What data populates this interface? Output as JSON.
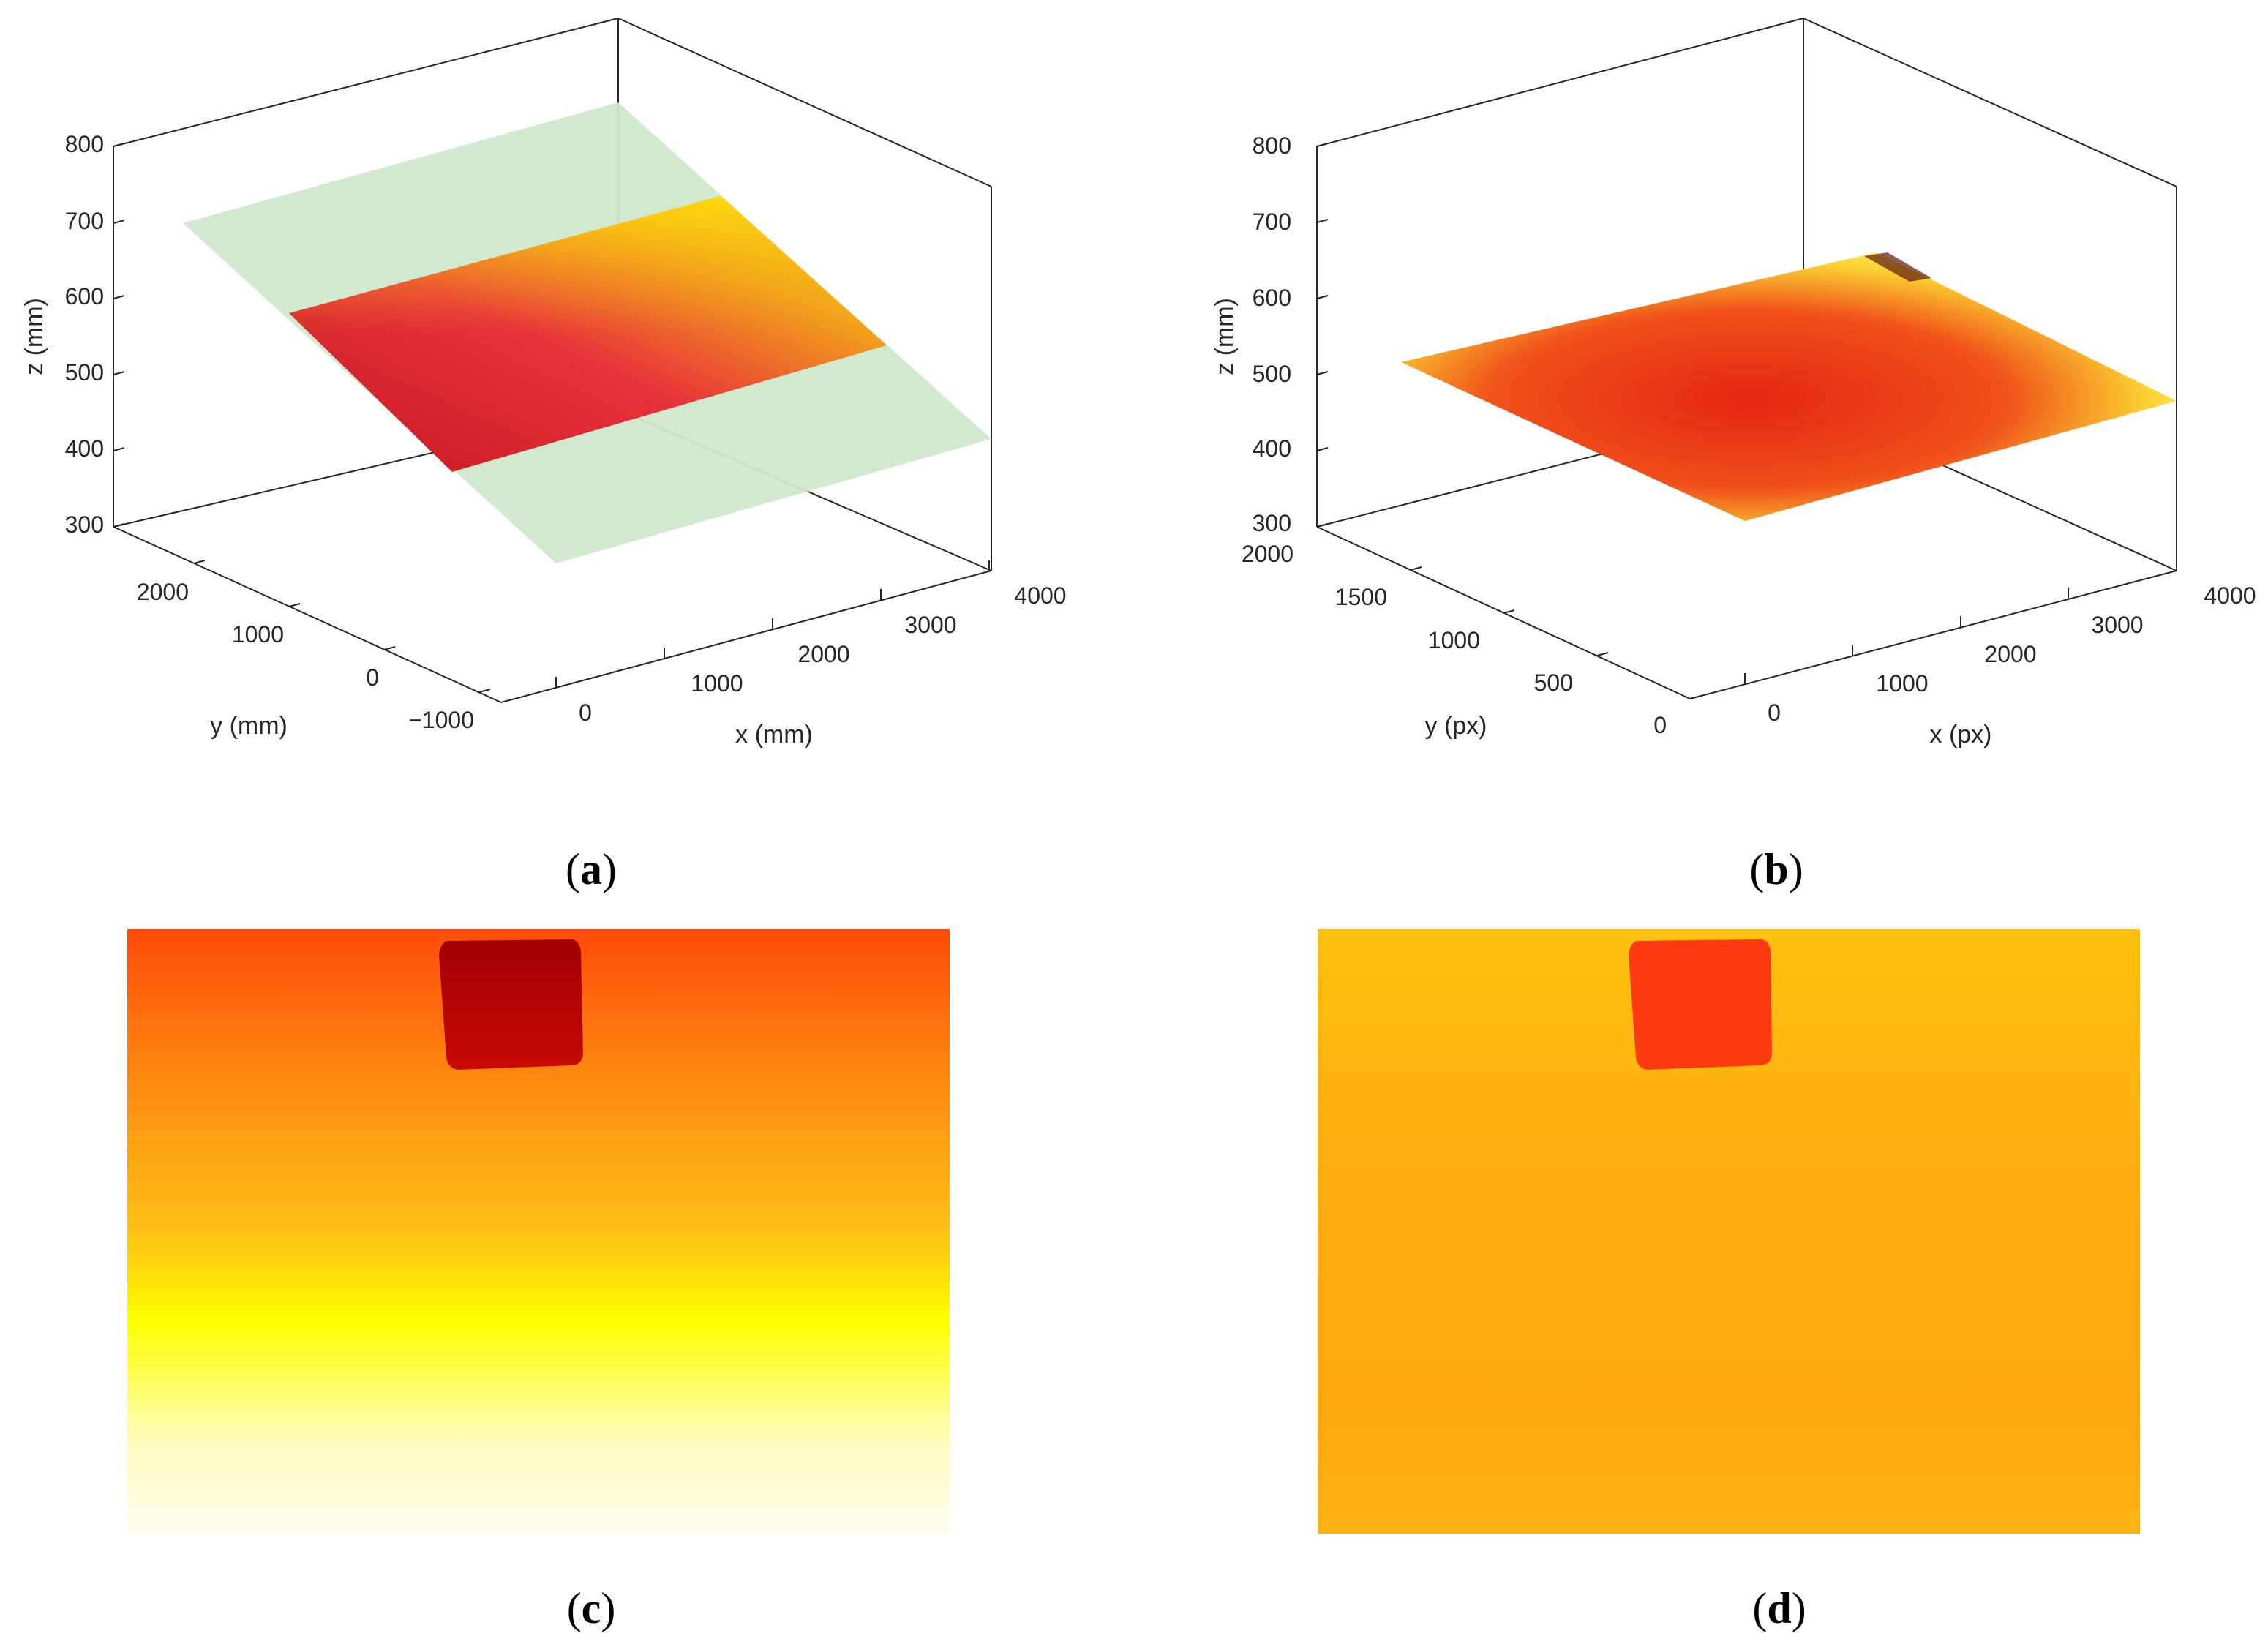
{
  "chart_data": [
    {
      "panel": "a",
      "type": "surface3d",
      "caption": "a",
      "xlabel": "x (mm)",
      "ylabel": "y (mm)",
      "zlabel": "z (mm)",
      "xticks": [
        "0",
        "1000",
        "2000",
        "3000",
        "4000"
      ],
      "yticks": [
        "−1000",
        "0",
        "1000",
        "2000"
      ],
      "zticks": [
        "300",
        "400",
        "500",
        "600",
        "700",
        "800"
      ],
      "xlim": [
        -500,
        4000
      ],
      "ylim": [
        -1300,
        2700
      ],
      "zlim": [
        300,
        800
      ],
      "colormap": "hot",
      "plane_color": "#cfe8cc",
      "plane": {
        "x": [
          0,
          4000
        ],
        "y": [
          -1100,
          2500
        ],
        "z": [
          700,
          400
        ],
        "note": ""
      }
    },
    {
      "panel": "b",
      "type": "surface3d",
      "caption": "b",
      "xlabel": "x (px)",
      "ylabel": "y (px)",
      "zlabel": "z (mm)",
      "xticks": [
        "0",
        "1000",
        "2000",
        "3000",
        "4000"
      ],
      "yticks": [
        "0",
        "500",
        "1000",
        "1500",
        "2000"
      ],
      "zticks": [
        "300",
        "400",
        "500",
        "600",
        "700",
        "800"
      ],
      "xlim": [
        -400,
        4000
      ],
      "ylim": [
        0,
        2000
      ],
      "zlim": [
        300,
        800
      ],
      "colormap": "hot"
    },
    {
      "panel": "c",
      "type": "heatmap",
      "caption": "c",
      "colormap": "hot",
      "gradient": [
        "#ff4a0a",
        "#ff8a10",
        "#ffc016",
        "#ffff00",
        "#fffbbf",
        "#fffef0"
      ],
      "object_color": "#b80606"
    },
    {
      "panel": "d",
      "type": "heatmap",
      "caption": "d",
      "colormap": "hot",
      "gradient": [
        "#ffc00f",
        "#ffb010",
        "#ffa810",
        "#ffb414"
      ],
      "object_color": "#ff3a10"
    }
  ]
}
